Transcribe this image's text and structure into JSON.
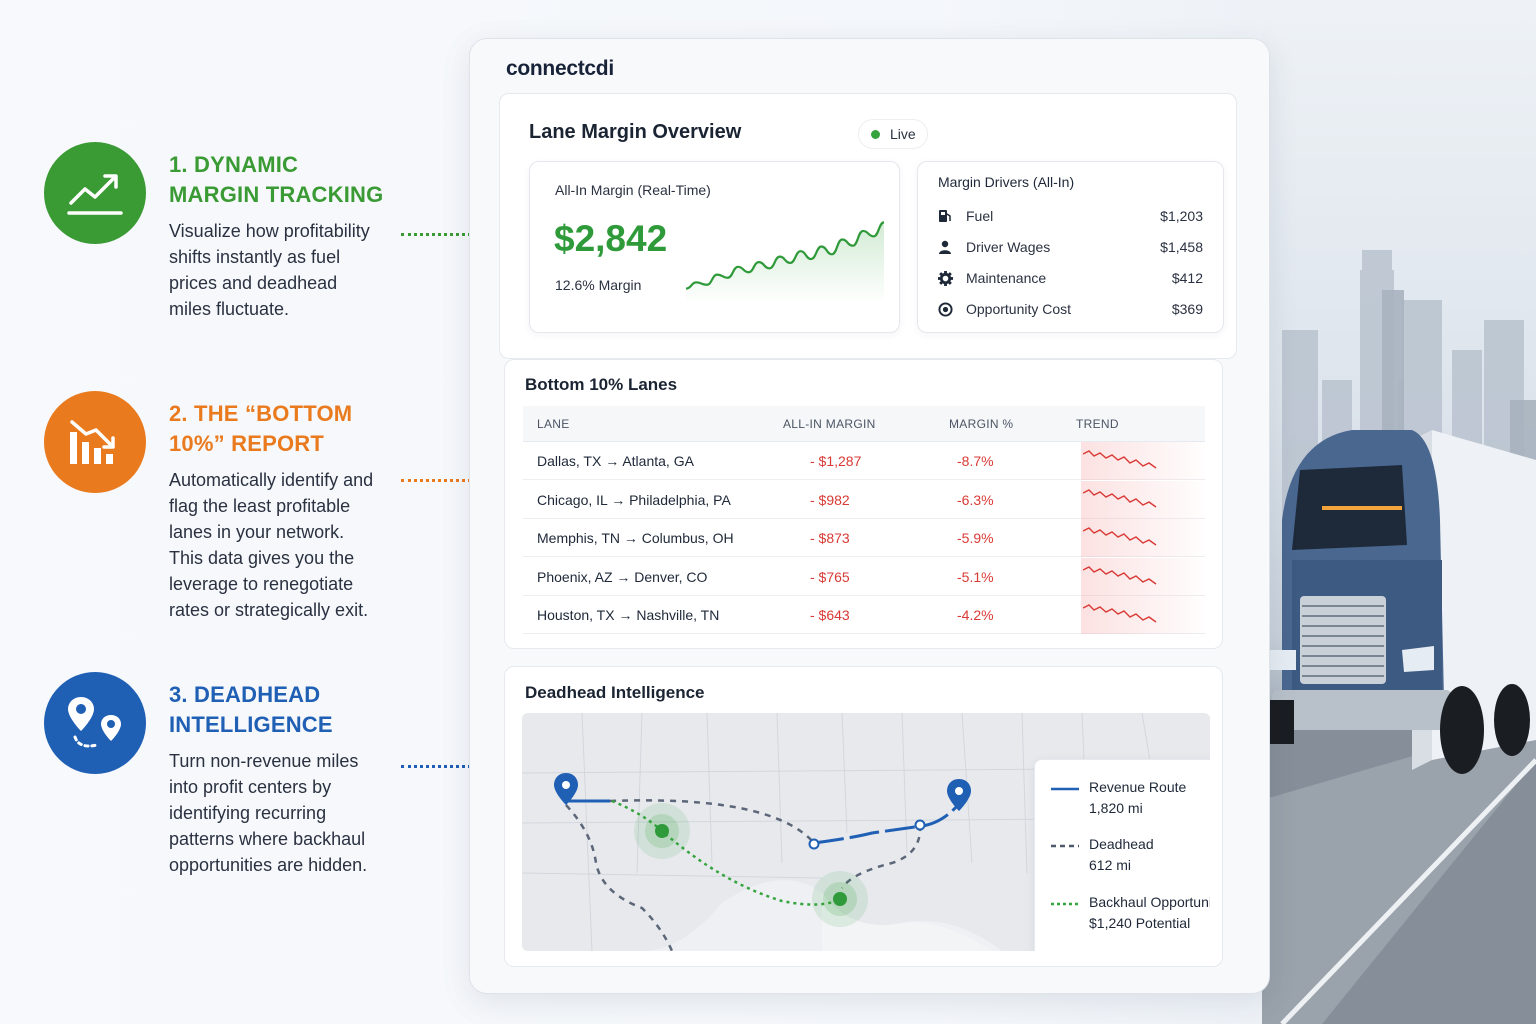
{
  "features": [
    {
      "title_line1": "1. DYNAMIC",
      "title_line2": "MARGIN TRACKING",
      "color": "#3a9a34",
      "icon": "trend-up-icon",
      "description_lines": [
        "Visualize how profitability",
        "shifts instantly as fuel",
        "prices and deadhead",
        "miles fluctuate."
      ]
    },
    {
      "title_line1": "2. THE “BOTTOM",
      "title_line2": "10%” REPORT",
      "color": "#ea7a1e",
      "icon": "bar-chart-down-icon",
      "description_lines": [
        "Automatically identify and",
        "flag the least profitable",
        "lanes in your network.",
        "This data gives you the",
        "leverage to renegotiate",
        "rates or strategically exit."
      ]
    },
    {
      "title_line1": "3. DEADHEAD",
      "title_line2": "INTELLIGENCE",
      "color": "#1f5fb4",
      "icon": "route-pins-icon",
      "description_lines": [
        "Turn non-revenue miles",
        "into profit centers by",
        "identifying recurring",
        "patterns where backhaul",
        "opportunities are hidden."
      ]
    }
  ],
  "dashboard": {
    "logo": "connectcdi",
    "overview": {
      "title": "Lane Margin Overview",
      "status": "Live",
      "margin_card": {
        "label": "All-In Margin (Real-Time)",
        "value": "$2,842",
        "percent": "12.6% Margin",
        "sparkline": [
          0.12,
          0.2,
          0.17,
          0.3,
          0.26,
          0.4,
          0.33,
          0.46,
          0.38,
          0.53,
          0.45,
          0.6,
          0.5,
          0.66,
          0.56,
          0.75,
          0.67,
          0.86,
          0.79,
          0.97
        ]
      },
      "drivers_card": {
        "title": "Margin Drivers (All-In)",
        "items": [
          {
            "label": "Fuel",
            "value": "$1,203",
            "icon": "fuel-pump-icon"
          },
          {
            "label": "Driver Wages",
            "value": "$1,458",
            "icon": "person-icon"
          },
          {
            "label": "Maintenance",
            "value": "$412",
            "icon": "gear-icon"
          },
          {
            "label": "Opportunity Cost",
            "value": "$369",
            "icon": "target-icon"
          }
        ]
      }
    },
    "bottom_lanes": {
      "title": "Bottom 10% Lanes",
      "columns": [
        "LANE",
        "ALL-IN MARGIN",
        "MARGIN %",
        "TREND"
      ],
      "rows": [
        {
          "lane": "Dallas, TX → Atlanta, GA",
          "margin": "- $1,287",
          "pct": "-8.7%"
        },
        {
          "lane": "Chicago, IL → Philadelphia, PA",
          "margin": "- $982",
          "pct": "-6.3%"
        },
        {
          "lane": "Memphis, TN → Columbus, OH",
          "margin": "- $873",
          "pct": "-5.9%"
        },
        {
          "lane": "Phoenix, AZ → Denver, CO",
          "margin": "- $765",
          "pct": "-5.1%"
        },
        {
          "lane": "Houston, TX → Nashville, TN",
          "margin": "- $643",
          "pct": "-4.2%"
        }
      ],
      "trend_color": "#d93a35"
    },
    "deadhead": {
      "title": "Deadhead Intelligence",
      "legend": [
        {
          "name": "Revenue Route",
          "value": "1,820 mi",
          "style": "solid",
          "color": "#1f5fb4"
        },
        {
          "name": "Deadhead",
          "value": "612 mi",
          "style": "dashed",
          "color": "#4e5a6c"
        },
        {
          "name": "Backhaul Opportunity",
          "value": "$1,240 Potential",
          "style": "dotted",
          "color": "#35a43e"
        }
      ]
    }
  },
  "colors": {
    "green": "#3a9a34",
    "orange": "#ea7a1e",
    "blue": "#1f5fb4",
    "negative": "#d93a35"
  }
}
